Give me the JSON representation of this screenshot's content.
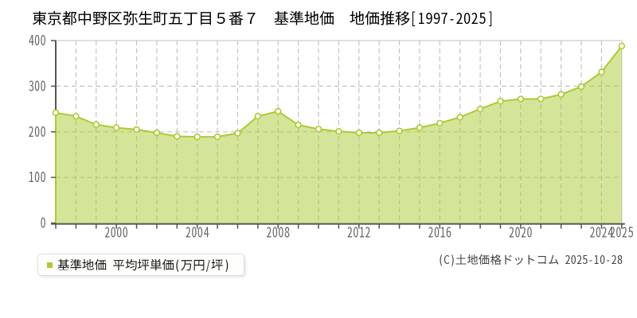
{
  "page": {
    "title": "東京都中野区弥生町五丁目５番７　基準地価　地価推移[1997-2025]",
    "copyright": "(C)土地価格ドットコム 2025-10-28"
  },
  "legend": {
    "label": "基準地価 平均坪単価(万円/坪)",
    "swatch_color": "#a9cc33"
  },
  "chart_data": {
    "type": "area",
    "title": "東京都中野区弥生町五丁目５番７ 基準地価 地価推移[1997-2025]",
    "series_name": "基準地価 平均坪単価(万円/坪)",
    "x": [
      1997,
      1998,
      1999,
      2000,
      2001,
      2002,
      2003,
      2004,
      2005,
      2006,
      2007,
      2008,
      2009,
      2010,
      2011,
      2012,
      2013,
      2014,
      2015,
      2016,
      2017,
      2018,
      2019,
      2020,
      2021,
      2022,
      2023,
      2024,
      2025
    ],
    "values": [
      242,
      234,
      216,
      209,
      205,
      198,
      190,
      189,
      189,
      197,
      234,
      245,
      215,
      206,
      201,
      198,
      198,
      202,
      209,
      219,
      232,
      250,
      267,
      272,
      272,
      282,
      299,
      331,
      388
    ],
    "xlabel": "",
    "ylabel": "万円/坪",
    "xlim": [
      1997,
      2025
    ],
    "ylim": [
      0,
      400
    ],
    "y_ticks": [
      0,
      100,
      200,
      300,
      400
    ],
    "x_tick_labels": [
      2000,
      2004,
      2008,
      2012,
      2016,
      2020,
      2024,
      2025
    ],
    "grid": true,
    "legend_position": "bottom-left",
    "colors": {
      "line": "#a9cc33",
      "fill": "rgba(169,204,51,0.5)",
      "marker_fill": "#ffffff",
      "grid": "#c3c3c3",
      "border": "#cccccc",
      "axis": "#555555",
      "tick_label": "#666666",
      "title_text": "#000000",
      "background": "#ffffff"
    }
  }
}
